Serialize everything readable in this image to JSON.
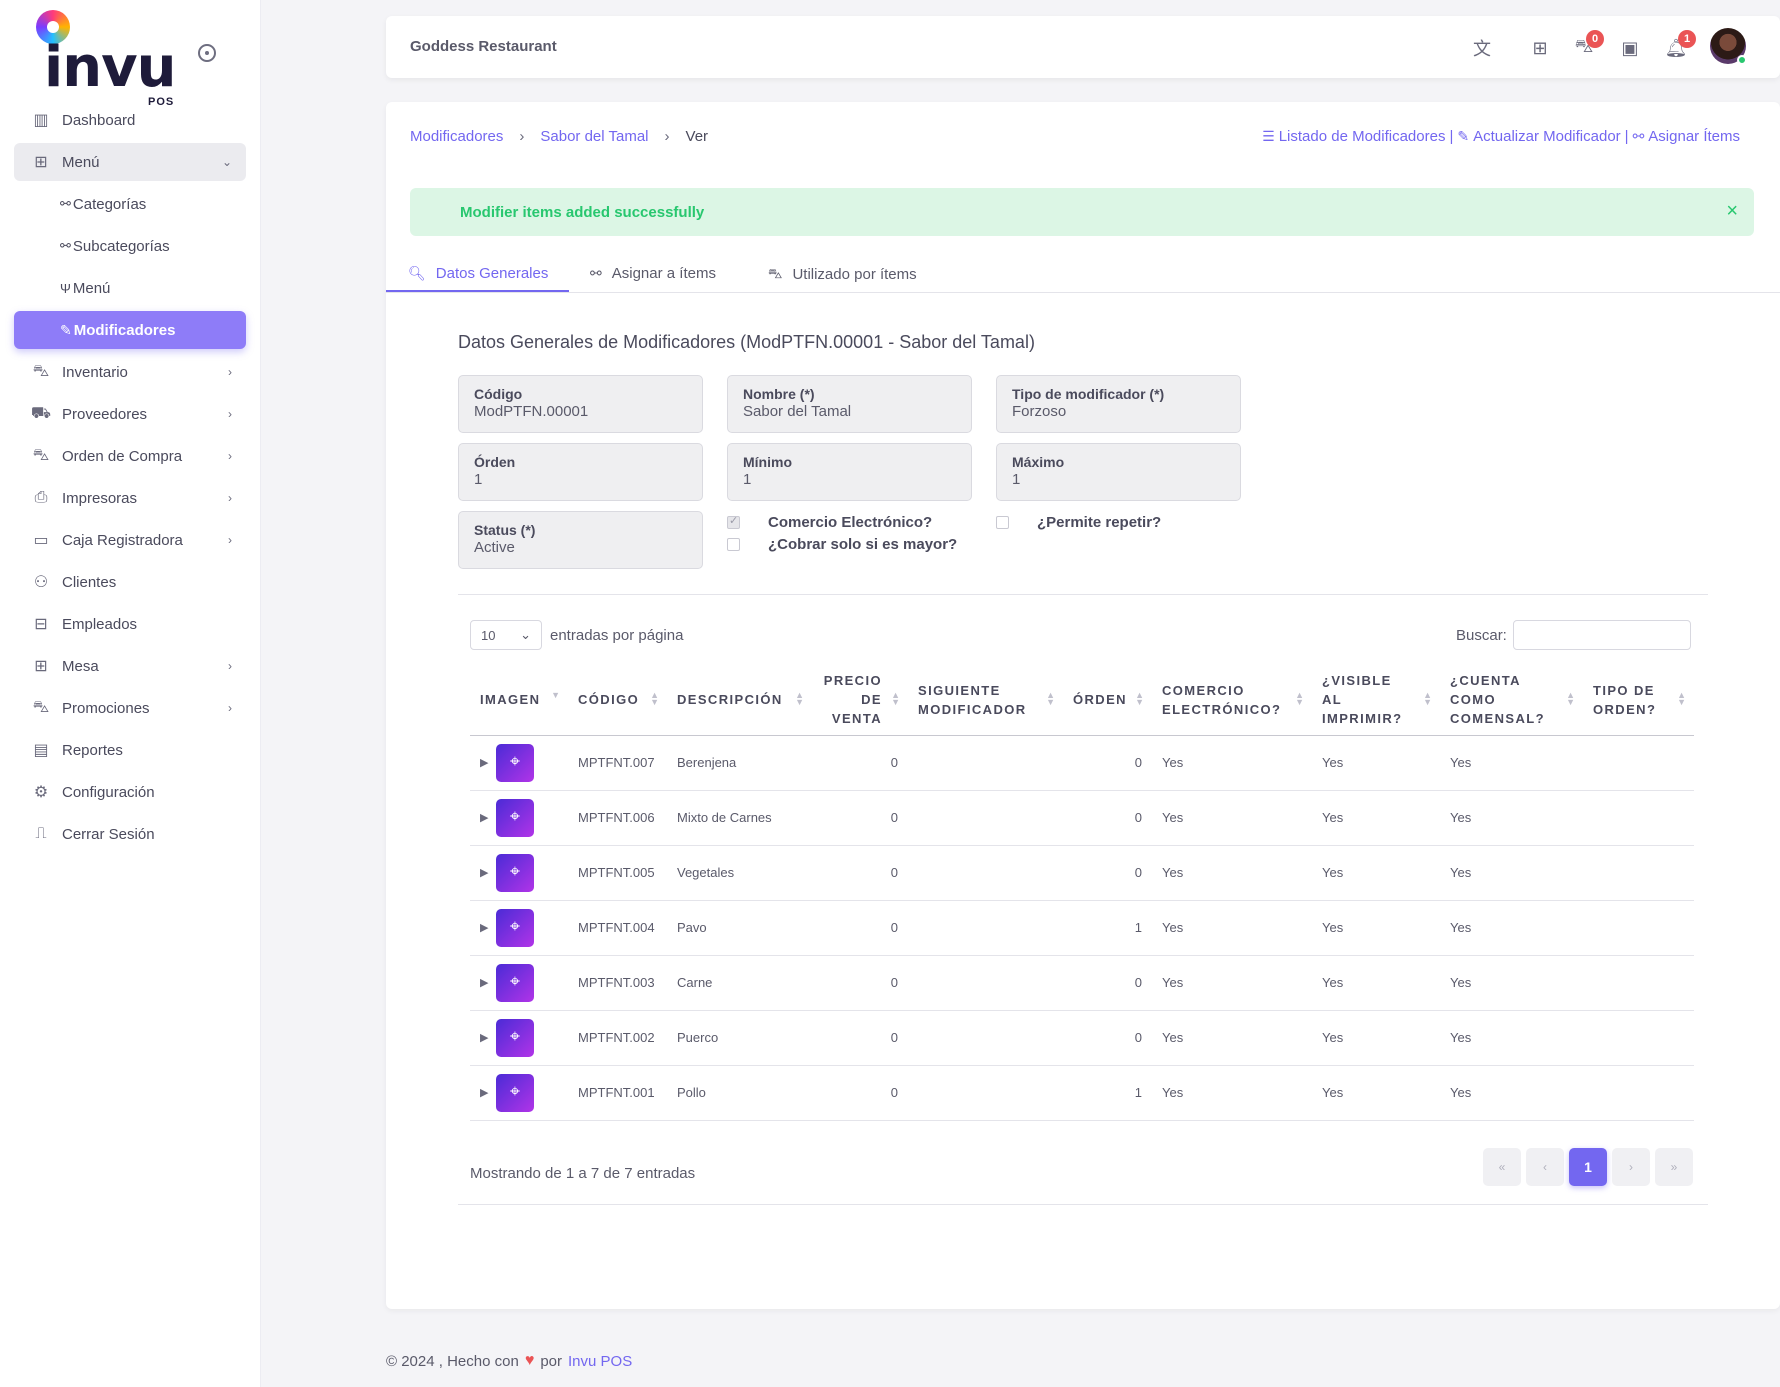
{
  "brand": {
    "name": "invu",
    "sub": "POS"
  },
  "sidebar": {
    "items": [
      {
        "label": "Dashboard",
        "icon": "chart-bar-icon",
        "glyph": "▥"
      },
      {
        "label": "Menú",
        "icon": "grid-icon",
        "glyph": "⊞",
        "open": true
      },
      {
        "label": "Categorías",
        "icon": "sitemap-icon",
        "glyph": "⚯"
      },
      {
        "label": "Subcategorías",
        "icon": "sitemap-icon",
        "glyph": "⚯"
      },
      {
        "label": "Menú",
        "icon": "utensils-icon",
        "glyph": "🍴"
      },
      {
        "label": "Modificadores",
        "icon": "edit-icon",
        "glyph": "✎",
        "active": true
      },
      {
        "label": "Inventario",
        "icon": "cart-plus-icon",
        "glyph": "🛒"
      },
      {
        "label": "Proveedores",
        "icon": "truck-icon",
        "glyph": "⛟"
      },
      {
        "label": "Orden de Compra",
        "icon": "cart-icon",
        "glyph": "🛒"
      },
      {
        "label": "Impresoras",
        "icon": "printer-icon",
        "glyph": "⎙"
      },
      {
        "label": "Caja Registradora",
        "icon": "register-icon",
        "glyph": "▭"
      },
      {
        "label": "Clientes",
        "icon": "users-icon",
        "glyph": "👥"
      },
      {
        "label": "Empleados",
        "icon": "briefcase-icon",
        "glyph": "💼"
      },
      {
        "label": "Mesa",
        "icon": "table-icon",
        "glyph": "⊞"
      },
      {
        "label": "Promociones",
        "icon": "cart-icon",
        "glyph": "🛒"
      },
      {
        "label": "Reportes",
        "icon": "file-icon",
        "glyph": "🗎"
      },
      {
        "label": "Configuración",
        "icon": "gear-icon",
        "glyph": "⚙"
      },
      {
        "label": "Cerrar Sesión",
        "icon": "door-icon",
        "glyph": "⎍"
      }
    ]
  },
  "topbar": {
    "title": "Goddess Restaurant",
    "cart_count": "0",
    "notif_count": "1"
  },
  "breadcrumb": {
    "root": "Modificadores",
    "parent": "Sabor del Tamal",
    "current": "Ver"
  },
  "top_links": {
    "list": "Listado de Modificadores",
    "update": "Actualizar Modificador",
    "assign": "Asignar Ítems",
    "separator": "|"
  },
  "alert": {
    "message": "Modifier items added successfully",
    "close": "×"
  },
  "tabs": [
    {
      "label": "Datos Generales",
      "active": true
    },
    {
      "label": "Asignar a ítems"
    },
    {
      "label": "Utilizado por ítems"
    }
  ],
  "section_title": "Datos Generales de Modificadores (ModPTFN.00001 - Sabor del Tamal)",
  "fields": {
    "codigo": {
      "label": "Código",
      "value": "ModPTFN.00001"
    },
    "nombre": {
      "label": "Nombre (*)",
      "value": "Sabor del Tamal"
    },
    "tipo": {
      "label": "Tipo de modificador (*)",
      "value": "Forzoso"
    },
    "orden": {
      "label": "Órden",
      "value": "1"
    },
    "minimo": {
      "label": "Mínimo",
      "value": "1"
    },
    "maximo": {
      "label": "Máximo",
      "value": "1"
    },
    "status": {
      "label": "Status (*)",
      "value": "Active"
    }
  },
  "checkboxes": {
    "ecommerce": {
      "label": "Comercio Electrónico?",
      "checked": true
    },
    "charge_if_greater": {
      "label": "¿Cobrar solo si es mayor?",
      "checked": false
    },
    "allow_repeat": {
      "label": "¿Permite repetir?",
      "checked": false
    }
  },
  "table_controls": {
    "per_page_value": "10",
    "per_page_label": "entradas por página",
    "search_label": "Buscar:"
  },
  "table": {
    "headers": [
      [
        "Imagen"
      ],
      [
        "Código"
      ],
      [
        "Descripción"
      ],
      [
        "Precio",
        "de",
        "venta"
      ],
      [
        "Siguiente",
        "modificador"
      ],
      [
        "Órden"
      ],
      [
        "Comercio",
        "electrónico?"
      ],
      [
        "¿Visible",
        "al",
        "imprimir?"
      ],
      [
        "¿Cuenta",
        "como",
        "comensal?"
      ],
      [
        "Tipo de",
        "orden?"
      ]
    ],
    "rows": [
      {
        "code": "MPTFNT.007",
        "desc": "Berenjena",
        "price": "0",
        "next": "",
        "order": "0",
        "ecom": "Yes",
        "visible": "Yes",
        "comensal": "Yes",
        "tipo": ""
      },
      {
        "code": "MPTFNT.006",
        "desc": "Mixto de Carnes",
        "price": "0",
        "next": "",
        "order": "0",
        "ecom": "Yes",
        "visible": "Yes",
        "comensal": "Yes",
        "tipo": ""
      },
      {
        "code": "MPTFNT.005",
        "desc": "Vegetales",
        "price": "0",
        "next": "",
        "order": "0",
        "ecom": "Yes",
        "visible": "Yes",
        "comensal": "Yes",
        "tipo": ""
      },
      {
        "code": "MPTFNT.004",
        "desc": "Pavo",
        "price": "0",
        "next": "",
        "order": "1",
        "ecom": "Yes",
        "visible": "Yes",
        "comensal": "Yes",
        "tipo": ""
      },
      {
        "code": "MPTFNT.003",
        "desc": "Carne",
        "price": "0",
        "next": "",
        "order": "0",
        "ecom": "Yes",
        "visible": "Yes",
        "comensal": "Yes",
        "tipo": ""
      },
      {
        "code": "MPTFNT.002",
        "desc": "Puerco",
        "price": "0",
        "next": "",
        "order": "0",
        "ecom": "Yes",
        "visible": "Yes",
        "comensal": "Yes",
        "tipo": ""
      },
      {
        "code": "MPTFNT.001",
        "desc": "Pollo",
        "price": "0",
        "next": "",
        "order": "1",
        "ecom": "Yes",
        "visible": "Yes",
        "comensal": "Yes",
        "tipo": ""
      }
    ]
  },
  "pagination": {
    "showing": "Mostrando de 1 a 7 de 7 entradas",
    "first": "«",
    "prev": "‹",
    "page": "1",
    "next": "›",
    "last": "»"
  },
  "footer": {
    "text": "© 2024 , Hecho con",
    "heart": "♥",
    "by": "por",
    "link": "Invu POS"
  },
  "colors": {
    "accent": "#7367f0",
    "success": "#28c76f",
    "danger": "#ea5455"
  }
}
